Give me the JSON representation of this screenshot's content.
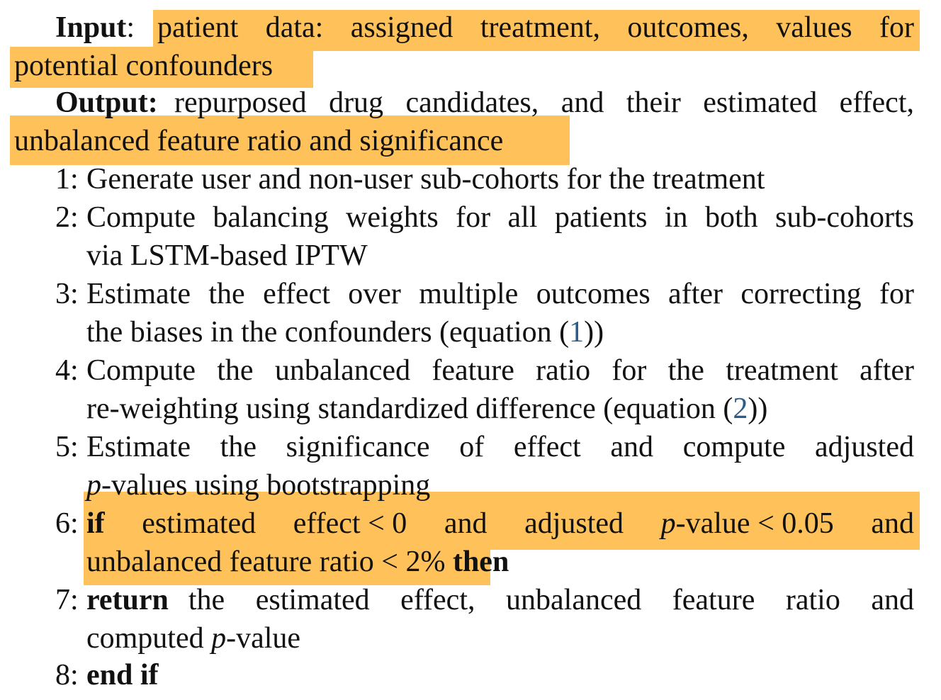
{
  "input": {
    "label": "Input",
    "colon": ":",
    "text_line1": "patient data: assigned treatment, outcomes, values for",
    "text_line2": "potential confounders"
  },
  "output": {
    "label": "Output:",
    "text_line1": "repurposed drug candidates, and their estimated effect,",
    "text_line2": "unbalanced feature ratio and significance"
  },
  "steps": {
    "s1": {
      "num": "1:",
      "line1": "Generate user and non-user sub-cohorts for the treatment"
    },
    "s2": {
      "num": "2:",
      "line1": "Compute balancing weights for all patients in both sub-cohorts",
      "line2": "via LSTM-based IPTW"
    },
    "s3": {
      "num": "3:",
      "line1": "Estimate the effect over multiple outcomes after correcting for",
      "line2_pre": "the biases in the confounders (equation (",
      "line2_ref": "1",
      "line2_post": "))"
    },
    "s4": {
      "num": "4:",
      "line1": "Compute the unbalanced feature ratio for the treatment after",
      "line2_pre": "re-weighting using standardized difference (equation (",
      "line2_ref": "2",
      "line2_post": "))"
    },
    "s5": {
      "num": "5:",
      "line1": "Estimate the significance of effect and compute adjusted",
      "line2_p": "p",
      "line2_rest": "-values using bootstrapping"
    },
    "s6": {
      "num": "6:",
      "kw_if": "if",
      "w1": "estimated",
      "w2": "effect < 0",
      "w3": "and",
      "w4": "adjusted",
      "w5_p": "p",
      "w5_rest": "-value < 0.05",
      "w6": "and",
      "line2": "unbalanced feature ratio < 2%",
      "kw_then": "then"
    },
    "s7": {
      "num": "7:",
      "kw_return": "return",
      "line1_rest": "the estimated effect, unbalanced feature ratio and",
      "line2_pre": "computed ",
      "line2_p": "p",
      "line2_post": "-value"
    },
    "s8": {
      "num": "8:",
      "kw_endif": "end if"
    }
  },
  "highlight_color": "#FFC25A"
}
